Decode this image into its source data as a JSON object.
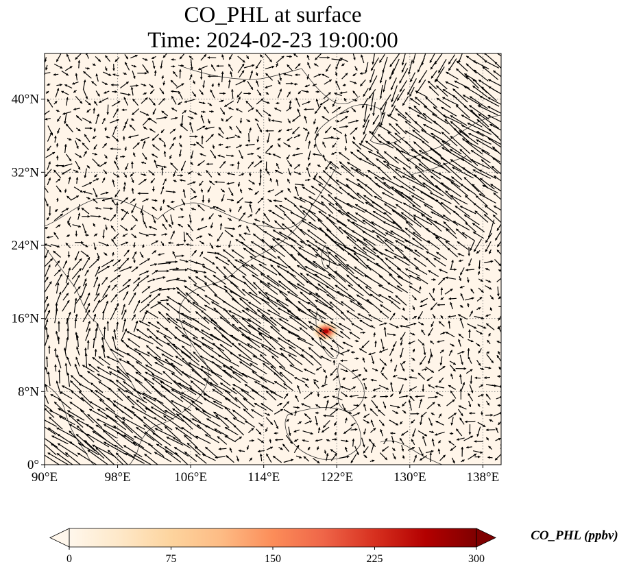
{
  "title": {
    "line1": "CO_PHL at surface",
    "line2": "Time: 2024-02-23 19:00:00"
  },
  "map": {
    "lon_range": [
      90,
      140
    ],
    "lat_range": [
      0,
      45
    ],
    "lon_ticks": [
      {
        "value": 90,
        "label": "90°E"
      },
      {
        "value": 98,
        "label": "98°E"
      },
      {
        "value": 106,
        "label": "106°E"
      },
      {
        "value": 114,
        "label": "114°E"
      },
      {
        "value": 122,
        "label": "122°E"
      },
      {
        "value": 130,
        "label": "130°E"
      },
      {
        "value": 138,
        "label": "138°E"
      }
    ],
    "lat_ticks": [
      {
        "value": 0,
        "label": "0°"
      },
      {
        "value": 8,
        "label": "8°N"
      },
      {
        "value": 16,
        "label": "16°N"
      },
      {
        "value": 24,
        "label": "24°N"
      },
      {
        "value": 32,
        "label": "32°N"
      },
      {
        "value": 40,
        "label": "40°N"
      }
    ],
    "gridlines": true,
    "background_color": "#fff5e9",
    "plume": {
      "lon": 120.8,
      "lat": 14.6,
      "peak_ppbv": 300
    }
  },
  "colorbar": {
    "label": "CO_PHL (ppbv)",
    "min": 0,
    "max": 300,
    "extend": "both",
    "cmap": "OrRd",
    "colors": [
      "#fff7ec",
      "#fee8c8",
      "#fdd49e",
      "#fdbb84",
      "#fc8d59",
      "#ef6548",
      "#d7301f",
      "#b30000",
      "#7f0000"
    ],
    "ticks": [
      {
        "value": 0,
        "label": "0"
      },
      {
        "value": 75,
        "label": "75"
      },
      {
        "value": 150,
        "label": "150"
      },
      {
        "value": 225,
        "label": "225"
      },
      {
        "value": 300,
        "label": "300"
      }
    ]
  }
}
